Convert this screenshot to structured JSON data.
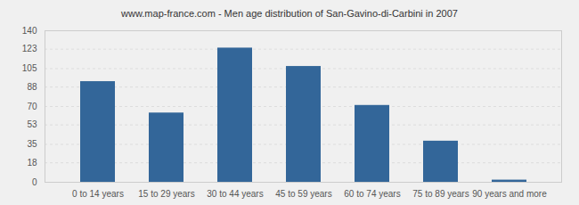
{
  "chart_data": {
    "type": "bar",
    "title": "www.map-france.com - Men age distribution of San-Gavino-di-Carbini in 2007",
    "categories": [
      "0 to 14 years",
      "15 to 29 years",
      "30 to 44 years",
      "45 to 59 years",
      "60 to 74 years",
      "75 to 89 years",
      "90 years and more"
    ],
    "values": [
      93,
      64,
      124,
      107,
      71,
      38,
      2
    ],
    "color": "#336699",
    "ylim": [
      0,
      140
    ],
    "yticks": [
      0,
      18,
      35,
      53,
      70,
      88,
      105,
      123,
      140
    ],
    "grid": true
  }
}
